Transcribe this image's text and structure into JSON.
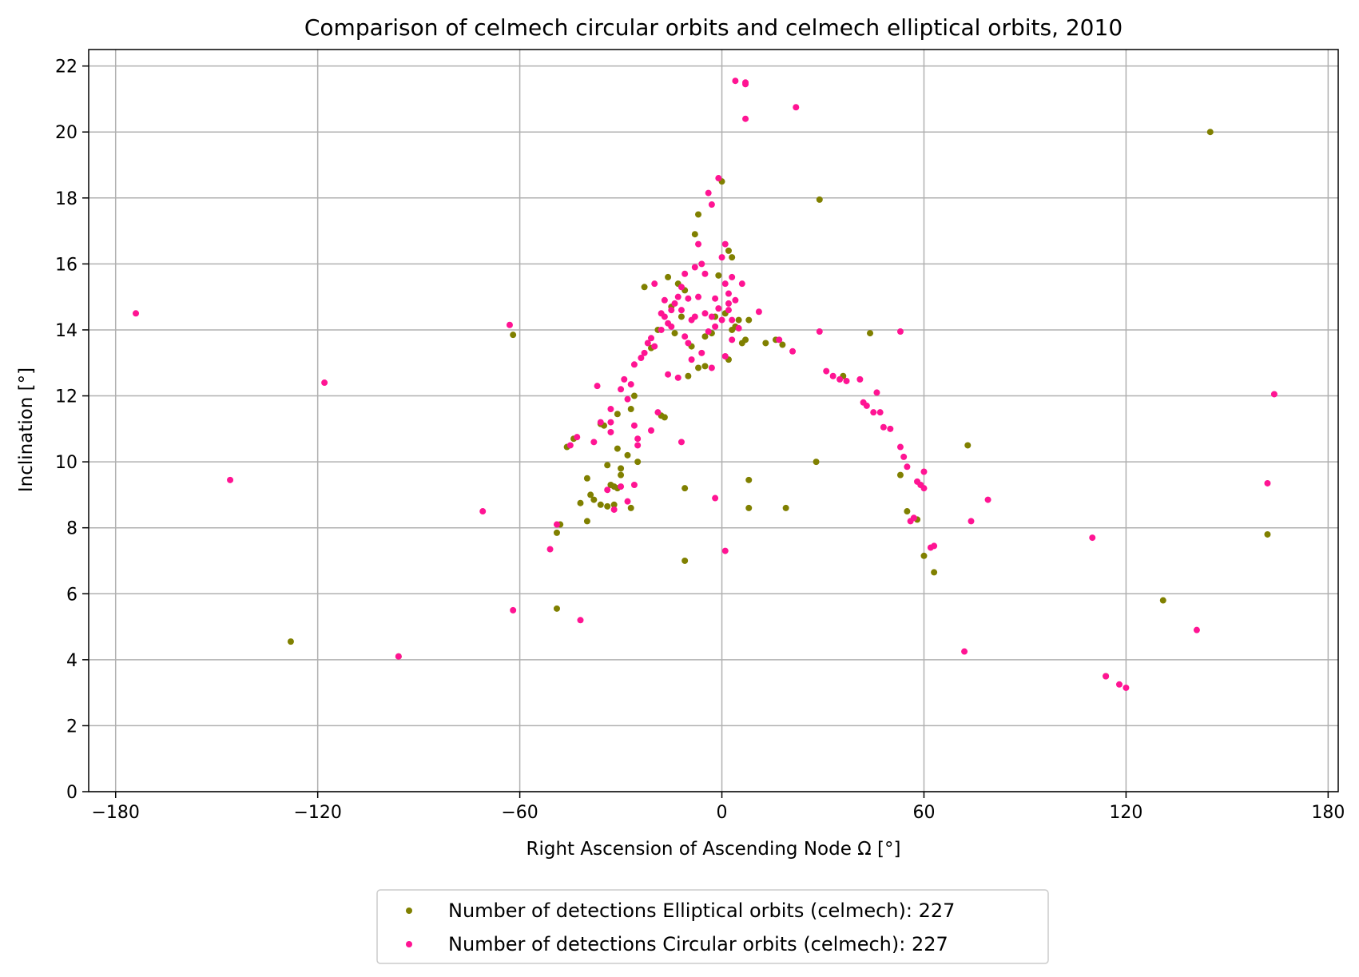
{
  "chart_data": {
    "type": "scatter",
    "title": "Comparison of celmech circular orbits and celmech elliptical orbits, 2010",
    "xlabel": "Right Ascension of Ascending Node Ω [°]",
    "ylabel": "Inclination [°]",
    "xlim": [
      -188,
      183
    ],
    "ylim": [
      0,
      22.5
    ],
    "xticks": [
      -180,
      -120,
      -60,
      0,
      60,
      120,
      180
    ],
    "yticks": [
      0,
      2,
      4,
      6,
      8,
      10,
      12,
      14,
      16,
      18,
      20,
      22
    ],
    "xtick_labels": [
      "−180",
      "−120",
      "−60",
      "0",
      "60",
      "120",
      "180"
    ],
    "ytick_labels": [
      "0",
      "2",
      "4",
      "6",
      "8",
      "10",
      "12",
      "14",
      "16",
      "18",
      "20",
      "22"
    ],
    "grid": true,
    "legend_position": "below the plot, centered",
    "series": [
      {
        "name": "Number of detections Elliptical orbits (celmech): 227",
        "color": "#808000",
        "points": [
          [
            145,
            20.0
          ],
          [
            29,
            17.95
          ],
          [
            -62,
            13.85
          ],
          [
            -128,
            4.55
          ],
          [
            -96,
            4.1
          ],
          [
            -49,
            5.55
          ],
          [
            -11,
            7.0
          ],
          [
            73,
            10.5
          ],
          [
            28,
            10.0
          ],
          [
            131,
            5.8
          ],
          [
            162,
            7.8
          ],
          [
            114,
            3.5
          ],
          [
            63,
            6.65
          ],
          [
            60,
            7.15
          ],
          [
            58,
            8.25
          ],
          [
            55,
            8.5
          ],
          [
            53,
            9.6
          ],
          [
            44,
            13.9
          ],
          [
            36,
            12.6
          ],
          [
            18,
            13.55
          ],
          [
            16,
            13.7
          ],
          [
            13,
            13.6
          ],
          [
            8,
            9.45
          ],
          [
            8,
            8.6
          ],
          [
            19,
            8.6
          ],
          [
            -11,
            9.2
          ],
          [
            -31,
            11.45
          ],
          [
            -31,
            10.4
          ],
          [
            -34,
            9.9
          ],
          [
            -34,
            8.65
          ],
          [
            -36,
            8.7
          ],
          [
            -38,
            8.85
          ],
          [
            -39,
            9.0
          ],
          [
            -40,
            9.5
          ],
          [
            -40,
            8.2
          ],
          [
            -42,
            8.75
          ],
          [
            -46,
            10.45
          ],
          [
            -49,
            7.85
          ],
          [
            -48,
            8.1
          ],
          [
            -30,
            9.8
          ],
          [
            -30,
            9.6
          ],
          [
            -27,
            8.6
          ],
          [
            -25,
            10.0
          ],
          [
            -33,
            9.3
          ],
          [
            -32,
            9.25
          ],
          [
            -31,
            9.2
          ],
          [
            -32,
            8.7
          ],
          [
            -18,
            11.4
          ],
          [
            -17,
            11.35
          ],
          [
            -21,
            13.45
          ],
          [
            -19,
            14.0
          ],
          [
            -16,
            15.6
          ],
          [
            -13,
            15.4
          ],
          [
            -11,
            15.2
          ],
          [
            -9,
            13.5
          ],
          [
            -7,
            12.85
          ],
          [
            -5,
            13.8
          ],
          [
            -3,
            13.9
          ],
          [
            -2,
            14.4
          ],
          [
            -1,
            15.65
          ],
          [
            0,
            18.5
          ],
          [
            2,
            16.4
          ],
          [
            3,
            16.2
          ],
          [
            1,
            14.5
          ],
          [
            3,
            14.0
          ],
          [
            5,
            14.3
          ],
          [
            6,
            13.6
          ],
          [
            7,
            13.7
          ],
          [
            8,
            14.3
          ],
          [
            4,
            14.1
          ],
          [
            2,
            13.1
          ],
          [
            -8,
            16.9
          ],
          [
            -7,
            17.5
          ],
          [
            -23,
            15.3
          ],
          [
            -14,
            13.9
          ],
          [
            -12,
            14.4
          ],
          [
            -15,
            14.7
          ],
          [
            -10,
            12.6
          ],
          [
            -5,
            12.9
          ],
          [
            -26,
            12.0
          ],
          [
            -27,
            11.6
          ],
          [
            -35,
            11.1
          ],
          [
            -36,
            11.15
          ],
          [
            -44,
            10.7
          ],
          [
            -28,
            10.2
          ]
        ]
      },
      {
        "name": "Number of detections Circular orbits (celmech): 227",
        "color": "#ff1493",
        "points": [
          [
            -174,
            14.5
          ],
          [
            -146,
            9.45
          ],
          [
            -118,
            12.4
          ],
          [
            -71,
            8.5
          ],
          [
            -63,
            14.15
          ],
          [
            -62,
            5.5
          ],
          [
            -96,
            4.1
          ],
          [
            -51,
            7.35
          ],
          [
            -42,
            5.2
          ],
          [
            -49,
            8.1
          ],
          [
            -45,
            10.5
          ],
          [
            -43,
            10.75
          ],
          [
            -37,
            12.3
          ],
          [
            -38,
            10.6
          ],
          [
            -36,
            11.2
          ],
          [
            -33,
            11.6
          ],
          [
            -33,
            11.2
          ],
          [
            -33,
            10.9
          ],
          [
            -32,
            8.55
          ],
          [
            -30,
            12.2
          ],
          [
            -29,
            12.5
          ],
          [
            -28,
            11.9
          ],
          [
            -27,
            12.35
          ],
          [
            -26,
            12.95
          ],
          [
            -26,
            11.1
          ],
          [
            -25,
            10.7
          ],
          [
            -25,
            10.5
          ],
          [
            -24,
            13.15
          ],
          [
            -23,
            13.3
          ],
          [
            -22,
            13.6
          ],
          [
            -21,
            13.75
          ],
          [
            -20,
            13.5
          ],
          [
            -19,
            11.5
          ],
          [
            -18,
            14.0
          ],
          [
            -17,
            14.4
          ],
          [
            -16,
            14.2
          ],
          [
            -15,
            14.6
          ],
          [
            -14,
            14.8
          ],
          [
            -13,
            15.0
          ],
          [
            -12,
            15.3
          ],
          [
            -11,
            15.7
          ],
          [
            -10,
            13.6
          ],
          [
            -9,
            14.3
          ],
          [
            -8,
            15.9
          ],
          [
            -7,
            16.6
          ],
          [
            -6,
            16.0
          ],
          [
            -5,
            15.7
          ],
          [
            -4,
            18.15
          ],
          [
            -3,
            17.8
          ],
          [
            -3,
            14.4
          ],
          [
            -2,
            14.1
          ],
          [
            -1,
            18.6
          ],
          [
            0,
            16.2
          ],
          [
            1,
            16.6
          ],
          [
            1,
            15.4
          ],
          [
            2,
            15.1
          ],
          [
            2,
            14.8
          ],
          [
            3,
            15.6
          ],
          [
            3,
            14.3
          ],
          [
            4,
            14.9
          ],
          [
            4,
            21.55
          ],
          [
            6,
            15.4
          ],
          [
            7,
            21.45
          ],
          [
            7,
            21.5
          ],
          [
            7,
            20.4
          ],
          [
            22,
            20.75
          ],
          [
            11,
            14.55
          ],
          [
            17,
            13.7
          ],
          [
            21,
            13.35
          ],
          [
            29,
            13.95
          ],
          [
            31,
            12.75
          ],
          [
            33,
            12.6
          ],
          [
            35,
            12.5
          ],
          [
            37,
            12.45
          ],
          [
            41,
            12.5
          ],
          [
            42,
            11.8
          ],
          [
            43,
            11.7
          ],
          [
            45,
            11.5
          ],
          [
            46,
            12.1
          ],
          [
            47,
            11.5
          ],
          [
            48,
            11.05
          ],
          [
            50,
            11.0
          ],
          [
            53,
            13.95
          ],
          [
            53,
            10.45
          ],
          [
            54,
            10.15
          ],
          [
            55,
            9.85
          ],
          [
            56,
            8.2
          ],
          [
            57,
            8.3
          ],
          [
            58,
            9.4
          ],
          [
            59,
            9.3
          ],
          [
            60,
            9.2
          ],
          [
            60,
            9.7
          ],
          [
            62,
            7.4
          ],
          [
            63,
            7.45
          ],
          [
            72,
            4.25
          ],
          [
            74,
            8.2
          ],
          [
            79,
            8.85
          ],
          [
            110,
            7.7
          ],
          [
            114,
            3.5
          ],
          [
            118,
            3.25
          ],
          [
            120,
            3.15
          ],
          [
            141,
            4.9
          ],
          [
            162,
            9.35
          ],
          [
            164,
            12.05
          ],
          [
            -2,
            8.9
          ],
          [
            1,
            7.3
          ],
          [
            -12,
            10.6
          ],
          [
            -21,
            10.95
          ],
          [
            -26,
            9.3
          ],
          [
            -28,
            8.8
          ],
          [
            -30,
            9.25
          ],
          [
            -34,
            9.15
          ],
          [
            -16,
            12.65
          ],
          [
            -13,
            12.55
          ],
          [
            -9,
            13.1
          ],
          [
            -6,
            13.3
          ],
          [
            -3,
            12.85
          ],
          [
            1,
            13.2
          ],
          [
            3,
            13.7
          ],
          [
            -20,
            15.4
          ],
          [
            -18,
            14.5
          ],
          [
            -15,
            14.1
          ],
          [
            -12,
            14.6
          ],
          [
            -10,
            14.95
          ],
          [
            -7,
            15.0
          ],
          [
            -5,
            14.5
          ],
          [
            -1,
            14.65
          ],
          [
            0,
            14.3
          ],
          [
            2,
            14.6
          ],
          [
            5,
            14.05
          ],
          [
            -11,
            13.8
          ],
          [
            -17,
            14.9
          ],
          [
            -8,
            14.4
          ],
          [
            -4,
            13.95
          ],
          [
            -2,
            14.95
          ]
        ]
      }
    ]
  }
}
